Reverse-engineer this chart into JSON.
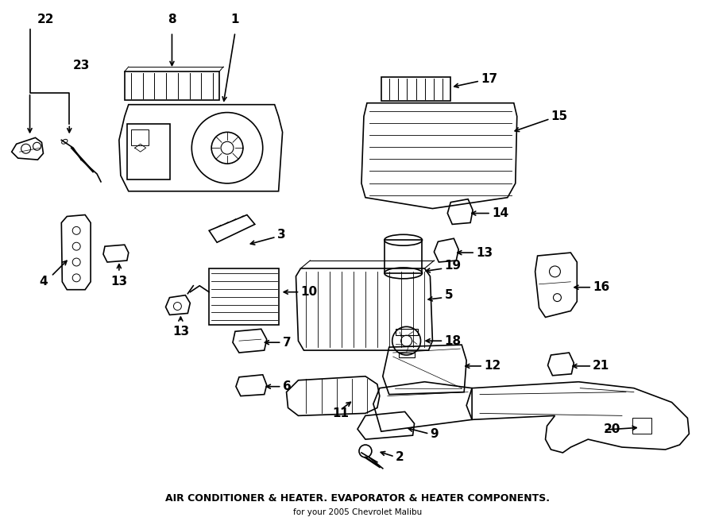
{
  "title": "AIR CONDITIONER & HEATER. EVAPORATOR & HEATER COMPONENTS.",
  "subtitle": "for your 2005 Chevrolet Malibu",
  "bg_color": "#ffffff",
  "line_color": "#000000",
  "text_color": "#000000",
  "fig_width": 9.0,
  "fig_height": 6.61,
  "dpi": 100
}
